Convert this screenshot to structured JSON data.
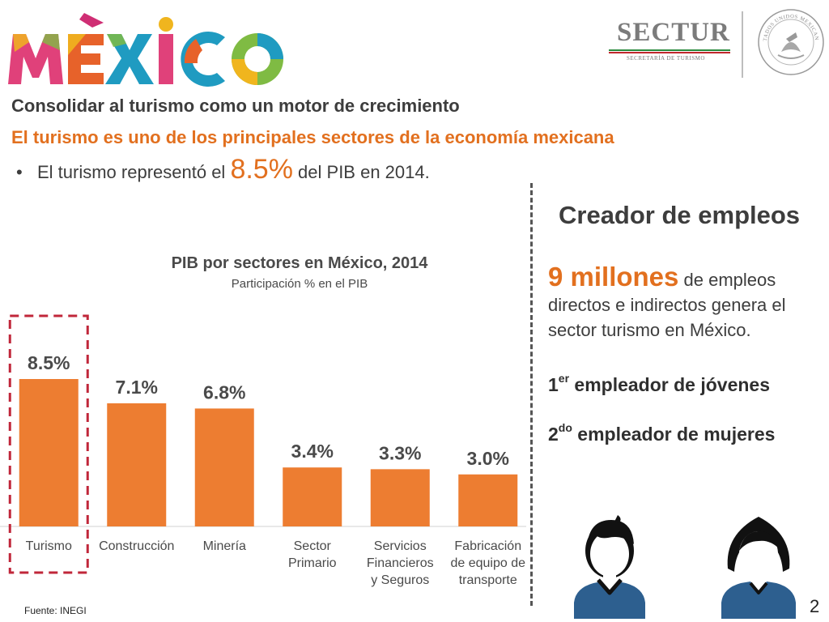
{
  "logos": {
    "mexico_wordmark": "MÉXICO",
    "sectur_word": "SECTUR",
    "sectur_subtitle": "SECRETARÍA DE TURISMO",
    "seal_text": "ESTADOS UNIDOS MEXICANOS",
    "mexico_colors": [
      "#e0417a",
      "#f0b51e",
      "#e7622a",
      "#7fbb43",
      "#1f9bc1",
      "#cf2e74"
    ]
  },
  "header": {
    "subtitle": "Consolidar al turismo como un motor de crecimiento",
    "headline": "El turismo es uno de los principales sectores de la economía mexicana",
    "bullet": {
      "symbol": "•",
      "before": "El turismo representó el ",
      "value": "8.5%",
      "after": " del PIB en 2014."
    }
  },
  "chart_data": {
    "type": "bar",
    "title": "PIB por sectores en México, 2014",
    "subtitle": "Participación % en el PIB",
    "categories": [
      "Turismo",
      "Construcción",
      "Minería",
      "Sector Primario",
      "Servicios Financieros y Seguros",
      "Fabricación de equipo de transporte"
    ],
    "category_lines": [
      [
        "Turismo"
      ],
      [
        "Construcción"
      ],
      [
        "Minería"
      ],
      [
        "Sector",
        "Primario"
      ],
      [
        "Servicios",
        "Financieros",
        "y Seguros"
      ],
      [
        "Fabricación",
        "de equipo de",
        "transporte"
      ]
    ],
    "values": [
      8.5,
      7.1,
      6.8,
      3.4,
      3.3,
      3.0
    ],
    "value_labels": [
      "8.5%",
      "7.1%",
      "6.8%",
      "3.4%",
      "3.3%",
      "3.0%"
    ],
    "highlighted_category": "Turismo",
    "bar_color": "#ed7d31",
    "highlight_color": "#c0273a",
    "ylim": [
      0,
      8.5
    ],
    "grid": false,
    "source": "Fuente: INEGI"
  },
  "right_panel": {
    "title": "Creador de empleos",
    "jobs_big": "9 millones",
    "jobs_rest": " de empleos directos e indirectos genera el sector turismo en México.",
    "rank1": {
      "num": "1",
      "sup": "er",
      "text": " empleador de jóvenes"
    },
    "rank2": {
      "num": "2",
      "sup": "do",
      "text": " empleador de mujeres"
    },
    "icons": [
      "man-avatar-icon",
      "woman-avatar-icon"
    ]
  },
  "page_number": "2"
}
